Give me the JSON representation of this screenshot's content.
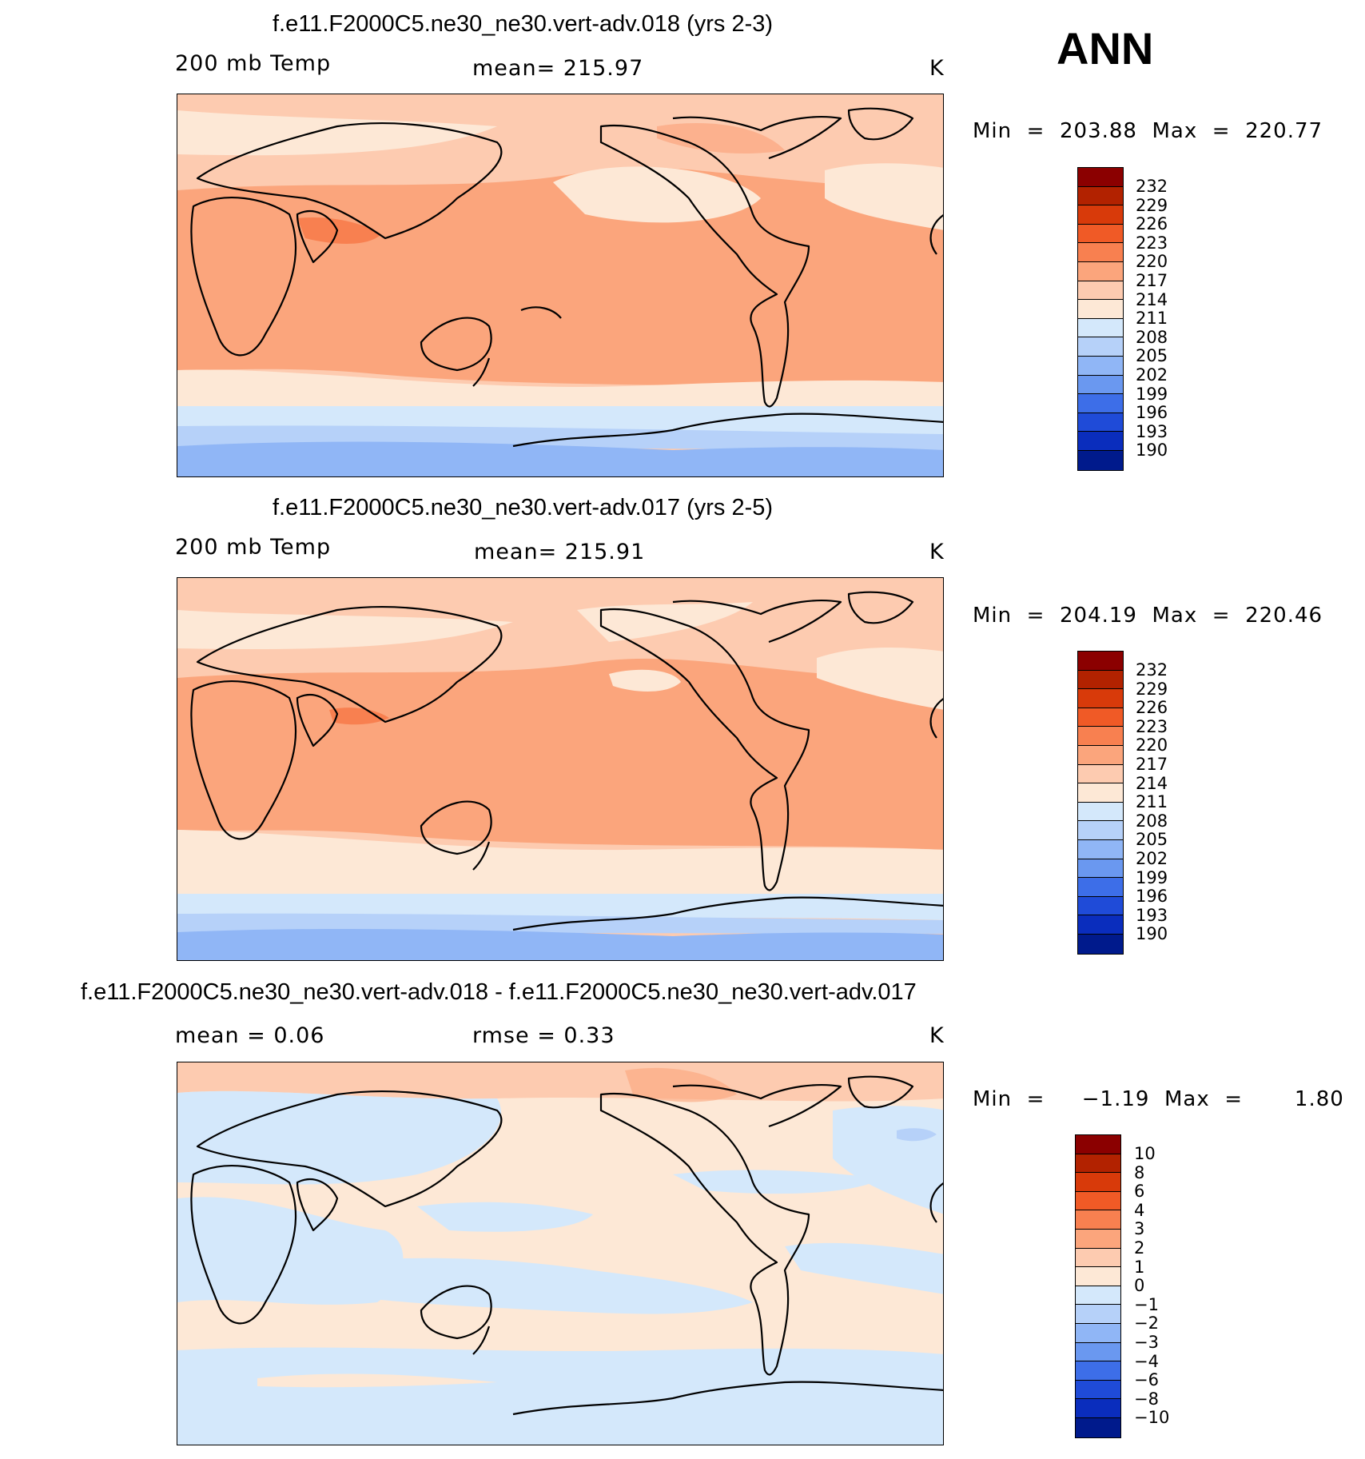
{
  "season": "ANN",
  "panels": [
    {
      "title": "f.e11.F2000C5.ne30_ne30.vert-adv.018 (yrs 2-3)",
      "left_label": "200 mb Temp",
      "center_label": "mean=  215.97",
      "units": "K",
      "min_max": "Min  =  203.88  Max  =  220.77"
    },
    {
      "title": "f.e11.F2000C5.ne30_ne30.vert-adv.017 (yrs 2-5)",
      "left_label": "200 mb Temp",
      "center_label": "mean=  215.91",
      "units": "K",
      "min_max": "Min  =  204.19  Max  =  220.46"
    },
    {
      "title": "f.e11.F2000C5.ne30_ne30.vert-adv.018 - f.e11.F2000C5.ne30_ne30.vert-adv.017",
      "left_label": "mean =      0.06",
      "center_label": "rmse =      0.33",
      "units": "K",
      "min_max": "Min  =     −1.19  Max  =       1.80"
    }
  ],
  "colorbars": {
    "absolute": {
      "labels": [
        "232",
        "229",
        "226",
        "223",
        "220",
        "217",
        "214",
        "211",
        "208",
        "205",
        "202",
        "199",
        "196",
        "193",
        "190"
      ],
      "colors": [
        "#8b0000",
        "#b22200",
        "#d83a0a",
        "#f05a26",
        "#f88050",
        "#fba57c",
        "#fdcbb0",
        "#fde8d6",
        "#d4e8fb",
        "#b6d1f9",
        "#90b6f6",
        "#6a98f0",
        "#3d6ee8",
        "#1f4bd8",
        "#0a2dbd",
        "#001a8c"
      ]
    },
    "difference": {
      "labels": [
        "10",
        "8",
        "6",
        "4",
        "3",
        "2",
        "1",
        "0",
        "−1",
        "−2",
        "−3",
        "−4",
        "−6",
        "−8",
        "−10"
      ],
      "colors": [
        "#8b0000",
        "#b22200",
        "#d83a0a",
        "#f05a26",
        "#f88050",
        "#fba57c",
        "#fdcbb0",
        "#fde8d6",
        "#d4e8fb",
        "#b6d1f9",
        "#90b6f6",
        "#6a98f0",
        "#3d6ee8",
        "#1f4bd8",
        "#0a2dbd",
        "#001a8c"
      ]
    }
  }
}
